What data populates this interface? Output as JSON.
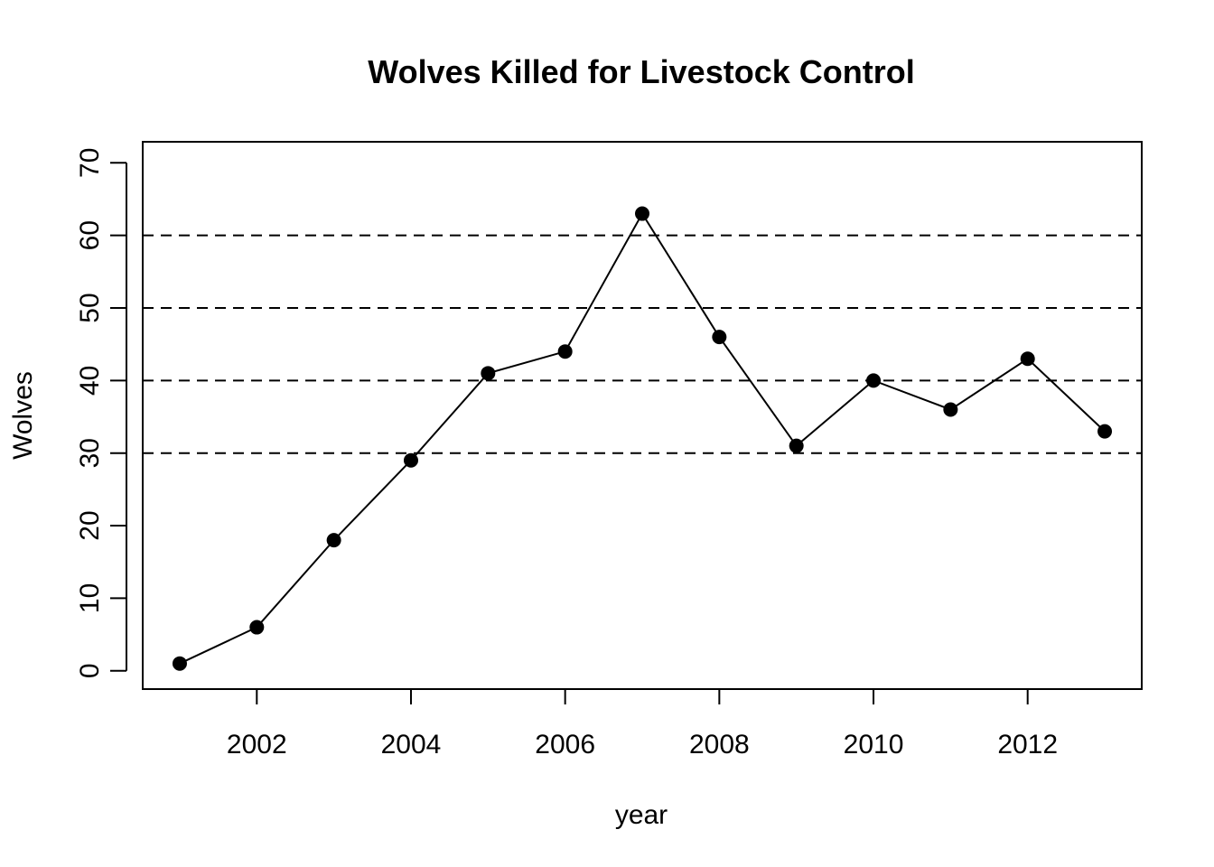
{
  "chart_data": {
    "type": "line",
    "title": "Wolves Killed for Livestock Control",
    "xlabel": "year",
    "ylabel": "Wolves",
    "x": [
      2001,
      2002,
      2003,
      2004,
      2005,
      2006,
      2007,
      2008,
      2009,
      2010,
      2011,
      2012,
      2013
    ],
    "series": [
      {
        "values": [
          1,
          6,
          18,
          29,
          41,
          44,
          63,
          46,
          31,
          40,
          36,
          43,
          33
        ]
      }
    ],
    "xlim": [
      2000.52,
      2013.48
    ],
    "ylim": [
      -2.52,
      72.9
    ],
    "x_ticks": [
      2002,
      2004,
      2006,
      2008,
      2010,
      2012
    ],
    "y_ticks": [
      0,
      10,
      20,
      30,
      40,
      50,
      60,
      70
    ],
    "reference_lines_y": [
      30,
      40,
      50,
      60
    ],
    "reference_line_style": "dashed",
    "marker": "filled-circle",
    "grid": false,
    "legend": "none",
    "colors": {
      "line": "#000000",
      "marker": "#000000",
      "axis": "#000000"
    }
  }
}
